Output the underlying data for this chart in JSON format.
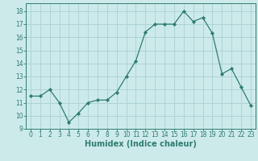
{
  "x": [
    0,
    1,
    2,
    3,
    4,
    5,
    6,
    7,
    8,
    9,
    10,
    11,
    12,
    13,
    14,
    15,
    16,
    17,
    18,
    19,
    20,
    21,
    22,
    23
  ],
  "y": [
    11.5,
    11.5,
    12.0,
    11.0,
    9.5,
    10.2,
    11.0,
    11.2,
    11.2,
    11.8,
    13.0,
    14.2,
    16.4,
    17.0,
    17.0,
    17.0,
    18.0,
    17.2,
    17.5,
    16.3,
    13.2,
    13.6,
    12.2,
    10.8
  ],
  "line_color": "#2e7d6e",
  "marker": "D",
  "marker_size": 2.2,
  "bg_color": "#cdeaea",
  "grid_color": "#aed4d4",
  "xlabel": "Humidex (Indice chaleur)",
  "ylabel": "",
  "xlim": [
    -0.5,
    23.5
  ],
  "ylim": [
    9,
    18.6
  ],
  "yticks": [
    9,
    10,
    11,
    12,
    13,
    14,
    15,
    16,
    17,
    18
  ],
  "xticks": [
    0,
    1,
    2,
    3,
    4,
    5,
    6,
    7,
    8,
    9,
    10,
    11,
    12,
    13,
    14,
    15,
    16,
    17,
    18,
    19,
    20,
    21,
    22,
    23
  ],
  "tick_label_fontsize": 5.5,
  "xlabel_fontsize": 7.0
}
